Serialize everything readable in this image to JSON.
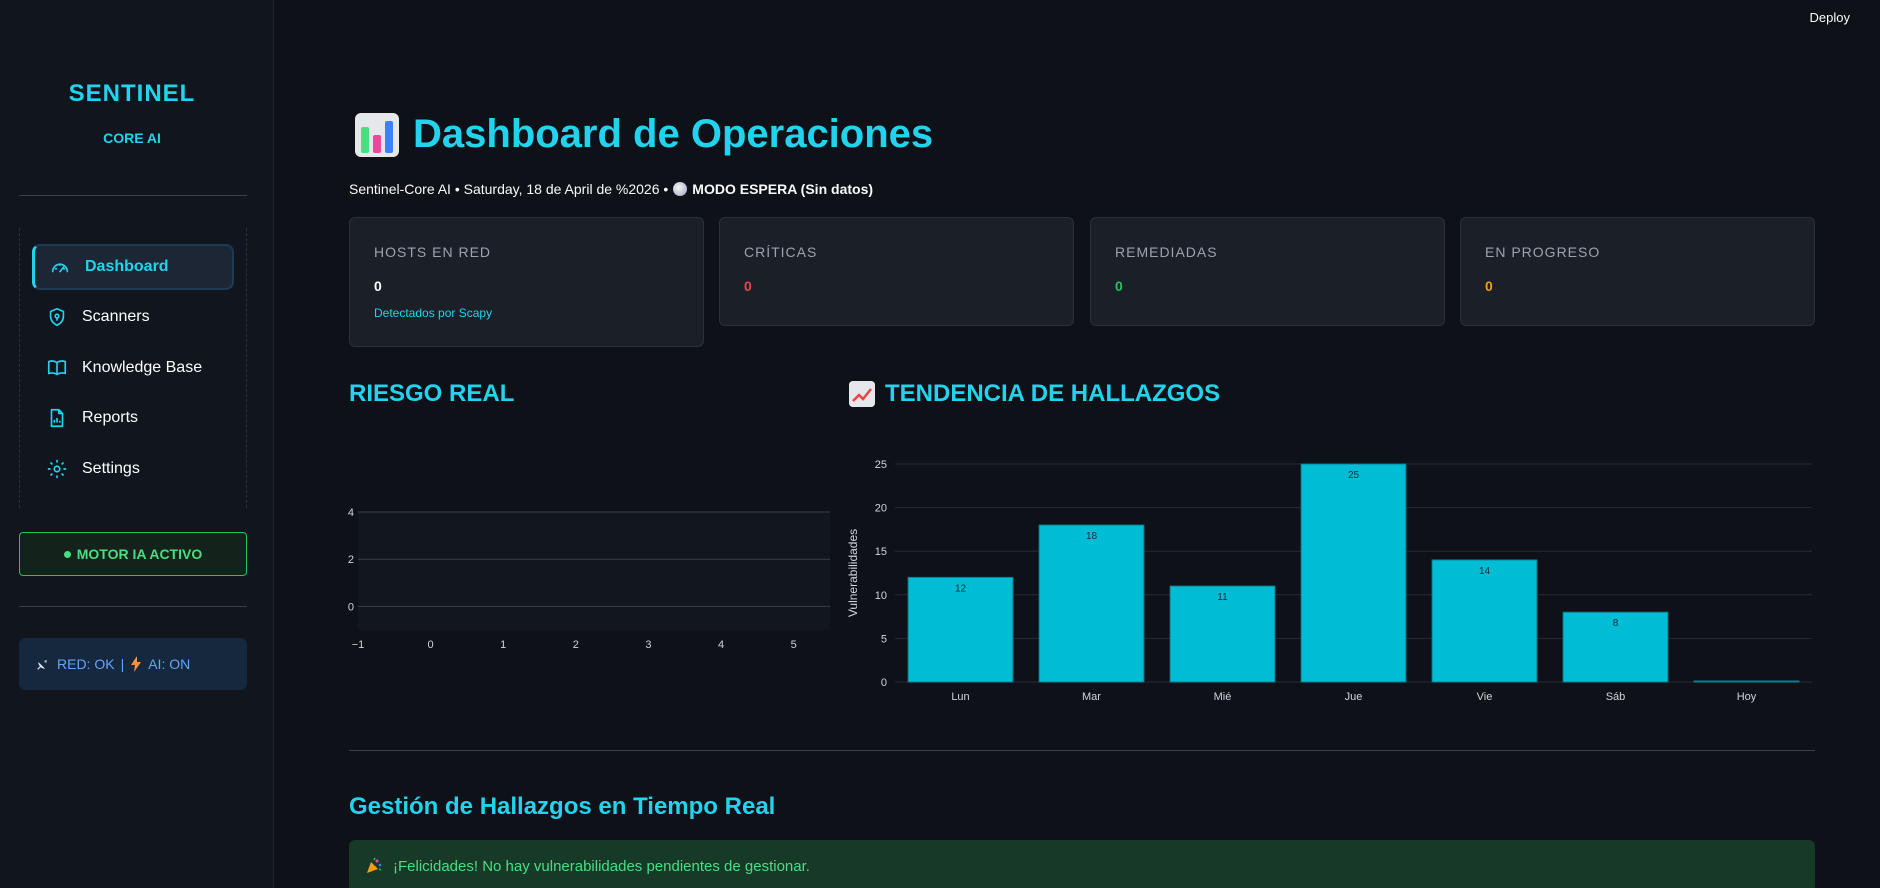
{
  "sidebar": {
    "brand": "SENTINEL",
    "brand_sub": "CORE AI",
    "nav": [
      {
        "label": "Dashboard",
        "icon": "gauge-icon"
      },
      {
        "label": "Scanners",
        "icon": "shield-icon"
      },
      {
        "label": "Knowledge Base",
        "icon": "book-icon"
      },
      {
        "label": "Reports",
        "icon": "report-icon"
      },
      {
        "label": "Settings",
        "icon": "gear-icon"
      }
    ],
    "motor_label": "MOTOR IA ACTIVO",
    "status_red": "RED: OK",
    "status_sep": "|",
    "status_ai": "AI: ON"
  },
  "header": {
    "deploy": "Deploy"
  },
  "main": {
    "title": "Dashboard de Operaciones",
    "subtitle_prefix": "Sentinel-Core AI • Saturday, 18 de April de %2026 •",
    "subtitle_mode": "MODO ESPERA (Sin datos)",
    "cards": [
      {
        "label": "HOSTS EN RED",
        "value": "0",
        "note": "Detectados por Scapy",
        "color": "#ffffff"
      },
      {
        "label": "CRÍTICAS",
        "value": "0",
        "note": "",
        "color": "#ef4444"
      },
      {
        "label": "REMEDIADAS",
        "value": "0",
        "note": "",
        "color": "#22c55e"
      },
      {
        "label": "EN PROGRESO",
        "value": "0",
        "note": "",
        "color": "#f59e0b"
      }
    ],
    "risk_title": "RIESGO REAL",
    "trend_title": "TENDENCIA DE HALLAZGOS",
    "table_title": "Gestión de Hallazgos en Tiempo Real",
    "success_msg": "¡Felicidades! No hay vulnerabilidades pendientes de gestionar."
  },
  "chart_data": [
    {
      "type": "scatter",
      "title": "",
      "x_ticks": [
        "−1",
        "0",
        "1",
        "2",
        "3",
        "4",
        "5"
      ],
      "y_ticks": [
        "4",
        "2",
        "0"
      ],
      "xlim": [
        -1,
        5.5
      ],
      "ylim": [
        -1,
        4
      ],
      "series": []
    },
    {
      "type": "bar",
      "categories": [
        "Lun",
        "Mar",
        "Mié",
        "Jue",
        "Vie",
        "Sáb",
        "Hoy"
      ],
      "values": [
        12,
        18,
        11,
        25,
        14,
        8,
        0
      ],
      "labels": [
        "12",
        "18",
        "11",
        "25",
        "14",
        "8",
        ""
      ],
      "ylabel": "Vulnerabilidades",
      "y_ticks": [
        "0",
        "5",
        "10",
        "15",
        "20",
        "25"
      ],
      "ylim": [
        0,
        25
      ],
      "color": "#00bcd4"
    }
  ]
}
